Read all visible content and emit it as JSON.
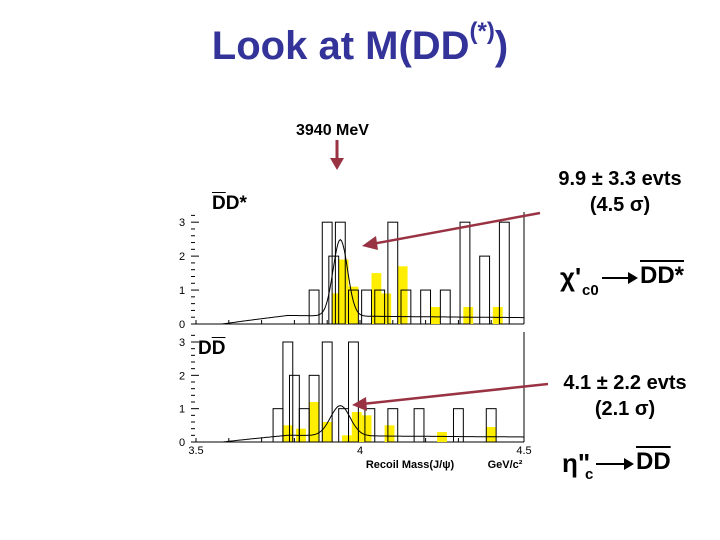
{
  "slide": {
    "title_main": "Look at M(DD",
    "title_sup": "(*)",
    "title_end": ")"
  },
  "annotations": {
    "mass_marker": "3940 MeV",
    "top_label_d": "D",
    "top_label_dstar": "D*",
    "bottom_label_d1": "D",
    "bottom_label_d2": "D",
    "top_yield": "9.9 ± 3.3 evts",
    "top_significance": "(4.5 σ)",
    "bottom_yield": "4.1 ± 2.2 evts",
    "bottom_significance": "(2.1 σ)",
    "chi_decay": {
      "symbol": "χ'",
      "sub": "c0",
      "products": "DD*"
    },
    "eta_decay": {
      "symbol": "η\"",
      "sub": "c",
      "products": "DD"
    }
  },
  "colors": {
    "title": "#333399",
    "arrow": "#993344",
    "hist_fill": "#ffee00",
    "hist_line": "#000000"
  },
  "chart_data": [
    {
      "type": "bar",
      "name": "DD* recoil mass",
      "xlabel": "Recoil Mass(J/ψ)",
      "xunit": "GeV/c²",
      "xlim": [
        3.5,
        4.5
      ],
      "ylim": [
        0,
        3.3
      ],
      "yticks": [
        "0",
        "1",
        "2",
        "3"
      ],
      "xticks": [],
      "signal_peak_x": 3.94,
      "data_outline_bins": [
        [
          3.62,
          0
        ],
        [
          3.7,
          0
        ],
        [
          3.78,
          0
        ],
        [
          3.86,
          1
        ],
        [
          3.9,
          3
        ],
        [
          3.92,
          2
        ],
        [
          3.94,
          3
        ],
        [
          3.98,
          1
        ],
        [
          4.02,
          1
        ],
        [
          4.06,
          1
        ],
        [
          4.1,
          3
        ],
        [
          4.14,
          1
        ],
        [
          4.2,
          1
        ],
        [
          4.26,
          1
        ],
        [
          4.32,
          3
        ],
        [
          4.38,
          2
        ],
        [
          4.44,
          3
        ]
      ],
      "shaded_bins": [
        [
          3.93,
          0.9
        ],
        [
          3.95,
          1.9
        ],
        [
          3.98,
          1.1
        ],
        [
          4.05,
          1.5
        ],
        [
          4.08,
          0.9
        ],
        [
          4.13,
          1.7
        ],
        [
          4.23,
          0.5
        ],
        [
          4.33,
          0.5
        ],
        [
          4.42,
          0.5
        ]
      ]
    },
    {
      "type": "bar",
      "name": "DD recoil mass",
      "xlabel": "Recoil Mass(J/ψ)",
      "xunit": "GeV/c²",
      "xlim": [
        3.5,
        4.5
      ],
      "ylim": [
        0,
        3.3
      ],
      "yticks": [
        "0",
        "1",
        "2",
        "3"
      ],
      "xticks": [
        "3.5",
        "4",
        "4.5"
      ],
      "signal_peak_x": 3.94,
      "data_outline_bins": [
        [
          3.7,
          0
        ],
        [
          3.75,
          1
        ],
        [
          3.78,
          3
        ],
        [
          3.8,
          2
        ],
        [
          3.83,
          1
        ],
        [
          3.86,
          2
        ],
        [
          3.9,
          3
        ],
        [
          3.95,
          1
        ],
        [
          3.98,
          3
        ],
        [
          4.03,
          1
        ],
        [
          4.1,
          1
        ],
        [
          4.18,
          1
        ],
        [
          4.3,
          1
        ],
        [
          4.4,
          1
        ]
      ],
      "shaded_bins": [
        [
          3.78,
          0.5
        ],
        [
          3.82,
          0.4
        ],
        [
          3.86,
          1.2
        ],
        [
          3.9,
          0.6
        ],
        [
          3.96,
          0.2
        ],
        [
          3.99,
          0.9
        ],
        [
          4.02,
          0.8
        ],
        [
          4.09,
          0.5
        ],
        [
          4.25,
          0.3
        ],
        [
          4.4,
          0.45
        ]
      ]
    }
  ]
}
